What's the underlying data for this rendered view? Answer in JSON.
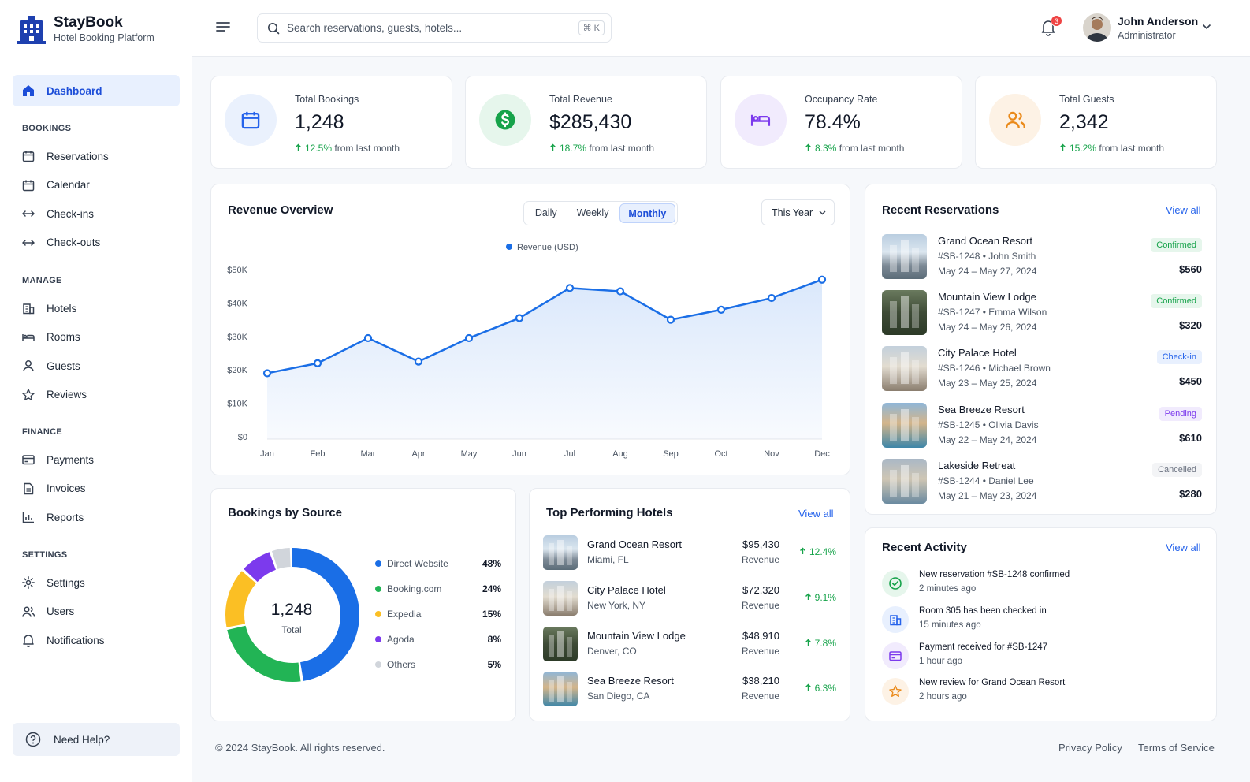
{
  "brand": {
    "name": "StayBook",
    "subtitle": "Hotel Booking Platform"
  },
  "sidebar": {
    "active": {
      "label": "Dashboard",
      "icon": "home-icon"
    },
    "sections": [
      {
        "title": "BOOKINGS",
        "items": [
          {
            "label": "Reservations",
            "icon": "calendar-icon"
          },
          {
            "label": "Calendar",
            "icon": "calendar-icon"
          },
          {
            "label": "Check-ins",
            "icon": "arrows-icon"
          },
          {
            "label": "Check-outs",
            "icon": "arrows-icon"
          }
        ]
      },
      {
        "title": "MANAGE",
        "items": [
          {
            "label": "Hotels",
            "icon": "building-icon"
          },
          {
            "label": "Rooms",
            "icon": "bed-icon"
          },
          {
            "label": "Guests",
            "icon": "user-icon"
          },
          {
            "label": "Reviews",
            "icon": "star-icon"
          }
        ]
      },
      {
        "title": "FINANCE",
        "items": [
          {
            "label": "Payments",
            "icon": "card-icon"
          },
          {
            "label": "Invoices",
            "icon": "document-icon"
          },
          {
            "label": "Reports",
            "icon": "bar-chart-icon"
          }
        ]
      },
      {
        "title": "SETTINGS",
        "items": [
          {
            "label": "Settings",
            "icon": "gear-icon"
          },
          {
            "label": "Users",
            "icon": "users-icon"
          },
          {
            "label": "Notifications",
            "icon": "bell-icon"
          }
        ]
      }
    ],
    "help": "Need Help?"
  },
  "topbar": {
    "search_placeholder": "Search reservations, guests, hotels...",
    "shortcut": "⌘ K",
    "notifications": "3",
    "user": {
      "name": "John Anderson",
      "role": "Administrator"
    }
  },
  "stats": [
    {
      "label": "Total Bookings",
      "value": "1,248",
      "change": "12.5%",
      "suffix": "from last month",
      "icon": "calendar-icon",
      "color": "#2563eb",
      "bg": "#eaf1fd"
    },
    {
      "label": "Total Revenue",
      "value": "$285,430",
      "change": "18.7%",
      "suffix": "from last month",
      "icon": "dollar-icon",
      "color": "#16a34a",
      "bg": "#e6f6ec"
    },
    {
      "label": "Occupancy Rate",
      "value": "78.4%",
      "change": "8.3%",
      "suffix": "from last month",
      "icon": "bed-icon",
      "color": "#7c3aed",
      "bg": "#f1ebfd"
    },
    {
      "label": "Total Guests",
      "value": "2,342",
      "change": "15.2%",
      "suffix": "from last month",
      "icon": "users-icon",
      "color": "#ea8a1a",
      "bg": "#fdf2e5"
    }
  ],
  "revenue": {
    "title": "Revenue Overview",
    "tabs": [
      "Daily",
      "Weekly",
      "Monthly"
    ],
    "active_tab": "Monthly",
    "period": "This Year"
  },
  "chart_data": {
    "type": "area",
    "title": "Revenue Overview",
    "categories": [
      "Jan",
      "Feb",
      "Mar",
      "Apr",
      "May",
      "Jun",
      "Jul",
      "Aug",
      "Sep",
      "Oct",
      "Nov",
      "Dec"
    ],
    "series": [
      {
        "name": "Revenue (USD)",
        "values": [
          19000,
          22000,
          29500,
          22500,
          29500,
          35500,
          44500,
          43500,
          35000,
          38000,
          41500,
          47000
        ],
        "color": "#1a6ee6"
      }
    ],
    "yticks": [
      "$0",
      "$10K",
      "$20K",
      "$30K",
      "$40K",
      "$50K"
    ],
    "ylim": [
      0,
      50000
    ],
    "legend": "top-center",
    "grid": false
  },
  "reservations": {
    "title": "Recent Reservations",
    "view_all": "View all",
    "items": [
      {
        "hotel": "Grand Ocean Resort",
        "id": "#SB-1248 • John Smith",
        "dates": "May 24 – May 27, 2024",
        "status": "Confirmed",
        "price": "$560",
        "img": "img-city",
        "sfg": "#16a34a",
        "sbg": "#e6f6ec"
      },
      {
        "hotel": "Mountain View Lodge",
        "id": "#SB-1247 • Emma Wilson",
        "dates": "May 24 – May 26, 2024",
        "status": "Confirmed",
        "price": "$320",
        "img": "img-forest",
        "sfg": "#16a34a",
        "sbg": "#e6f6ec"
      },
      {
        "hotel": "City Palace Hotel",
        "id": "#SB-1246 • Michael Brown",
        "dates": "May 23 – May 25, 2024",
        "status": "Check-in",
        "price": "$450",
        "img": "img-palace",
        "sfg": "#2563eb",
        "sbg": "#e8f0fe"
      },
      {
        "hotel": "Sea Breeze Resort",
        "id": "#SB-1245 • Olivia Davis",
        "dates": "May 22 – May 24, 2024",
        "status": "Pending",
        "price": "$610",
        "img": "img-sea",
        "sfg": "#7c3aed",
        "sbg": "#f1ebfd"
      },
      {
        "hotel": "Lakeside Retreat",
        "id": "#SB-1244 • Daniel Lee",
        "dates": "May 21 – May 23, 2024",
        "status": "Cancelled",
        "price": "$280",
        "img": "img-lake",
        "sfg": "#6b7280",
        "sbg": "#f3f4f6"
      }
    ]
  },
  "sources": {
    "title": "Bookings by Source",
    "total": "1,248",
    "total_label": "Total",
    "items": [
      {
        "name": "Direct Website",
        "pct": "48%",
        "value": 48,
        "color": "#1a6ee6"
      },
      {
        "name": "Booking.com",
        "pct": "24%",
        "value": 24,
        "color": "#22b455"
      },
      {
        "name": "Expedia",
        "pct": "15%",
        "value": 15,
        "color": "#fbbf24"
      },
      {
        "name": "Agoda",
        "pct": "8%",
        "value": 8,
        "color": "#7c3aed"
      },
      {
        "name": "Others",
        "pct": "5%",
        "value": 5,
        "color": "#d1d5db"
      }
    ]
  },
  "top_hotels": {
    "title": "Top Performing Hotels",
    "view_all": "View all",
    "items": [
      {
        "name": "Grand Ocean Resort",
        "location": "Miami, FL",
        "revenue": "$95,430",
        "rev_label": "Revenue",
        "change": "12.4%",
        "img": "img-city"
      },
      {
        "name": "City Palace Hotel",
        "location": "New York, NY",
        "revenue": "$72,320",
        "rev_label": "Revenue",
        "change": "9.1%",
        "img": "img-palace"
      },
      {
        "name": "Mountain View Lodge",
        "location": "Denver, CO",
        "revenue": "$48,910",
        "rev_label": "Revenue",
        "change": "7.8%",
        "img": "img-forest"
      },
      {
        "name": "Sea Breeze Resort",
        "location": "San Diego, CA",
        "revenue": "$38,210",
        "rev_label": "Revenue",
        "change": "6.3%",
        "img": "img-sea"
      }
    ]
  },
  "activity": {
    "title": "Recent Activity",
    "view_all": "View all",
    "items": [
      {
        "text": "New reservation #SB-1248 confirmed",
        "time": "2 minutes ago",
        "icon": "check-icon",
        "color": "#16a34a",
        "bg": "#e6f6ec"
      },
      {
        "text": "Room 305 has been checked in",
        "time": "15 minutes ago",
        "icon": "building-icon",
        "color": "#2563eb",
        "bg": "#e8f0fe"
      },
      {
        "text": "Payment received for #SB-1247",
        "time": "1 hour ago",
        "icon": "card-icon",
        "color": "#7c3aed",
        "bg": "#f1ebfd"
      },
      {
        "text": "New review for Grand Ocean Resort",
        "time": "2 hours ago",
        "icon": "star-icon",
        "color": "#ea8a1a",
        "bg": "#fdf2e5"
      }
    ]
  },
  "footer": {
    "copyright": "© 2024 StayBook. All rights reserved.",
    "privacy": "Privacy Policy",
    "terms": "Terms of Service"
  }
}
